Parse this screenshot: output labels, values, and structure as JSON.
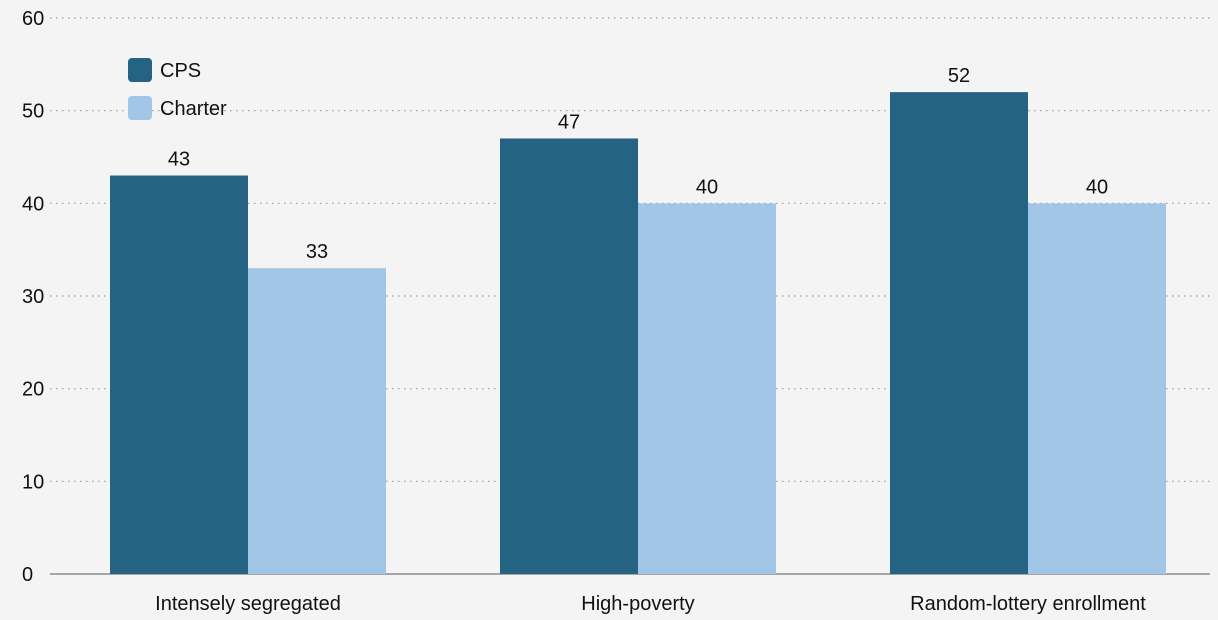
{
  "chart_data": {
    "type": "bar",
    "categories": [
      "Intensely segregated",
      "High-poverty",
      "Random-lottery enrollment"
    ],
    "series": [
      {
        "name": "CPS",
        "values": [
          43,
          47,
          52
        ],
        "color": "#256382"
      },
      {
        "name": "Charter",
        "values": [
          33,
          40,
          40
        ],
        "color": "#a1c6e8"
      }
    ],
    "ylim": [
      0,
      60
    ],
    "yticks": [
      "0",
      "10",
      "20",
      "30",
      "40",
      "50",
      "60"
    ],
    "grid": true,
    "legend_position": "top-left",
    "data_labels": true,
    "background": "#f4f4f4"
  }
}
